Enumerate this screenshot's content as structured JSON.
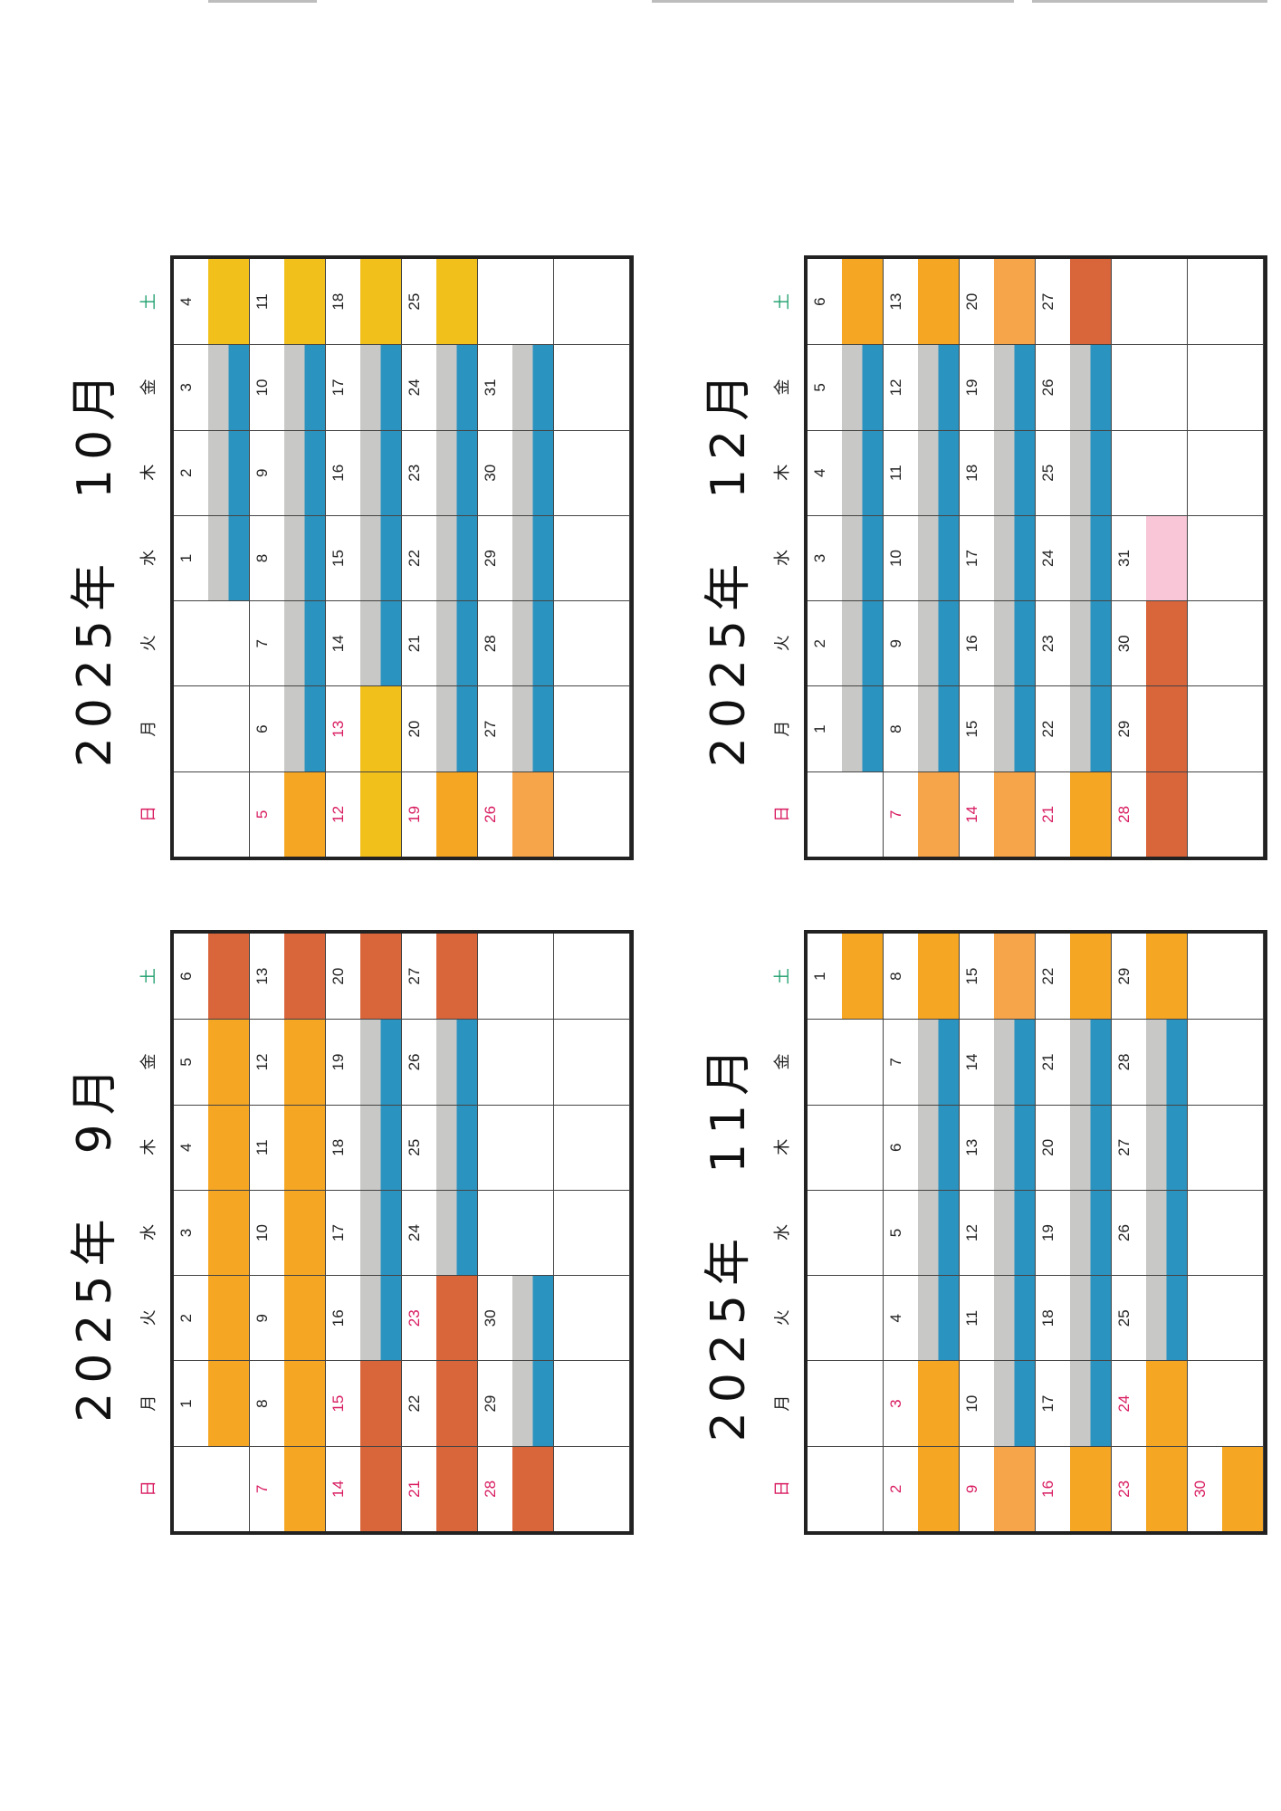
{
  "weekdays": [
    "日",
    "月",
    "火",
    "水",
    "木",
    "金",
    "土"
  ],
  "calendars": [
    {
      "id": "sep",
      "title": "2025年　9月",
      "start_offset": 1,
      "days": 30,
      "red_days": [
        7,
        14,
        15,
        21,
        23,
        28
      ],
      "colors": {
        "1": "orange",
        "2": "orange",
        "3": "orange",
        "4": "orange",
        "5": "orange",
        "6": "red",
        "7": "orange",
        "8": "orange",
        "9": "orange",
        "10": "orange",
        "11": "orange",
        "12": "orange",
        "13": "red",
        "14": "red",
        "15": "red",
        "16": "grey",
        "17": "grey",
        "18": "grey",
        "19": "grey",
        "20": "red",
        "21": "red",
        "22": "red",
        "23": "red",
        "24": "grey",
        "25": "grey",
        "26": "grey",
        "27": "red",
        "28": "red",
        "29": "grey",
        "30": "grey"
      }
    },
    {
      "id": "oct",
      "title": "2025年　10月",
      "start_offset": 3,
      "days": 31,
      "red_days": [
        5,
        12,
        13,
        19,
        26
      ],
      "colors": {
        "1": "grey",
        "2": "grey",
        "3": "grey",
        "4": "yellow",
        "5": "orange",
        "6": "grey",
        "7": "grey",
        "8": "grey",
        "9": "grey",
        "10": "grey",
        "11": "yellow",
        "12": "yellow",
        "13": "yellow",
        "14": "grey",
        "15": "grey",
        "16": "grey",
        "17": "grey",
        "18": "yellow",
        "19": "orange",
        "20": "grey",
        "21": "grey",
        "22": "grey",
        "23": "grey",
        "24": "grey",
        "25": "yellow",
        "26": "peach",
        "27": "grey",
        "28": "grey",
        "29": "grey",
        "30": "grey",
        "31": "grey"
      }
    },
    {
      "id": "nov",
      "title": "2025年　11月",
      "start_offset": 6,
      "days": 30,
      "red_days": [
        2,
        3,
        9,
        16,
        23,
        24,
        30
      ],
      "colors": {
        "1": "orange",
        "2": "orange",
        "3": "orange",
        "4": "grey",
        "5": "grey",
        "6": "grey",
        "7": "grey",
        "8": "orange",
        "9": "peach",
        "10": "grey",
        "11": "grey",
        "12": "grey",
        "13": "grey",
        "14": "grey",
        "15": "peach",
        "16": "orange",
        "17": "grey",
        "18": "grey",
        "19": "grey",
        "20": "grey",
        "21": "grey",
        "22": "orange",
        "23": "orange",
        "24": "orange",
        "25": "grey",
        "26": "grey",
        "27": "grey",
        "28": "grey",
        "29": "orange",
        "30": "orange"
      }
    },
    {
      "id": "dec",
      "title": "2025年　12月",
      "start_offset": 1,
      "days": 31,
      "red_days": [
        7,
        14,
        21,
        28
      ],
      "colors": {
        "1": "grey",
        "2": "grey",
        "3": "grey",
        "4": "grey",
        "5": "grey",
        "6": "orange",
        "7": "peach",
        "8": "grey",
        "9": "grey",
        "10": "grey",
        "11": "grey",
        "12": "grey",
        "13": "orange",
        "14": "peach",
        "15": "grey",
        "16": "grey",
        "17": "grey",
        "18": "grey",
        "19": "grey",
        "20": "peach",
        "21": "orange",
        "22": "grey",
        "23": "grey",
        "24": "grey",
        "25": "grey",
        "26": "grey",
        "27": "red",
        "28": "red",
        "29": "red",
        "30": "red",
        "31": "pink"
      }
    }
  ]
}
